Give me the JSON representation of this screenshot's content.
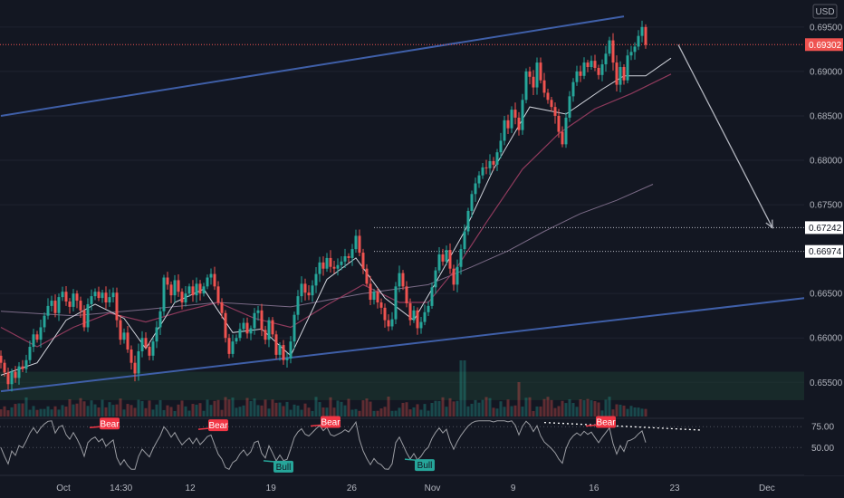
{
  "chart_data": {
    "type": "candlestick",
    "symbol_currency": "USD",
    "colors": {
      "background": "#131722",
      "up": "#26a69a",
      "down": "#ef5350",
      "channel": "#3f5fa8",
      "ma_fast": "#d1d4dc",
      "ma_mid": "#8e3a5c",
      "ma_slow": "#7a6a86",
      "zone": "#1e3b31",
      "rsi": "#9b9da3",
      "bull": "#26a69a",
      "bear": "#f23645"
    },
    "price_axis": {
      "min": 0.6535,
      "max": 0.6958,
      "ticks": [
        "0.69500",
        "0.69000",
        "0.68500",
        "0.68000",
        "0.67500",
        "0.66500",
        "0.66000",
        "0.65500"
      ]
    },
    "price_labels": [
      {
        "text": "0.69302",
        "value": 0.69302,
        "style": "current"
      },
      {
        "text": "0.67242",
        "value": 0.67242,
        "style": "level"
      },
      {
        "text": "0.66974",
        "value": 0.66974,
        "style": "level"
      }
    ],
    "time_axis": {
      "labels": [
        {
          "text": "Oct",
          "date": "2020-10-01"
        },
        {
          "text": "14:30",
          "date": "2020-10-06"
        },
        {
          "text": "12",
          "date": "2020-10-12"
        },
        {
          "text": "19",
          "date": "2020-10-19"
        },
        {
          "text": "26",
          "date": "2020-10-26"
        },
        {
          "text": "Nov",
          "date": "2020-11-02"
        },
        {
          "text": "9",
          "date": "2020-11-09"
        },
        {
          "text": "16",
          "date": "2020-11-16"
        },
        {
          "text": "23",
          "date": "2020-11-23"
        },
        {
          "text": "Dec",
          "date": "2020-12-01"
        }
      ]
    },
    "closes": [
      0.6572,
      0.6561,
      0.6548,
      0.6562,
      0.6555,
      0.6568,
      0.6565,
      0.6575,
      0.659,
      0.6604,
      0.6598,
      0.6612,
      0.6625,
      0.6636,
      0.6642,
      0.6628,
      0.6646,
      0.6652,
      0.6641,
      0.6635,
      0.665,
      0.6642,
      0.6631,
      0.6612,
      0.6638,
      0.6647,
      0.6652,
      0.6645,
      0.6651,
      0.664,
      0.6646,
      0.6651,
      0.662,
      0.6598,
      0.6606,
      0.6587,
      0.6572,
      0.656,
      0.6585,
      0.66,
      0.659,
      0.658,
      0.6596,
      0.6612,
      0.663,
      0.6668,
      0.666,
      0.6648,
      0.6665,
      0.6652,
      0.664,
      0.665,
      0.6658,
      0.6648,
      0.6661,
      0.665,
      0.6658,
      0.6668,
      0.6672,
      0.6658,
      0.664,
      0.6628,
      0.66,
      0.6582,
      0.6596,
      0.66,
      0.661,
      0.6617,
      0.6605,
      0.6611,
      0.6628,
      0.6631,
      0.6609,
      0.6598,
      0.662,
      0.6604,
      0.6581,
      0.6592,
      0.6575,
      0.6577,
      0.6596,
      0.6626,
      0.6647,
      0.6661,
      0.6651,
      0.6648,
      0.6659,
      0.6672,
      0.6685,
      0.6678,
      0.669,
      0.668,
      0.6678,
      0.6682,
      0.6686,
      0.6692,
      0.669,
      0.67,
      0.6715,
      0.6696,
      0.6678,
      0.6661,
      0.6643,
      0.6652,
      0.664,
      0.6634,
      0.662,
      0.6613,
      0.6621,
      0.6658,
      0.6673,
      0.6658,
      0.6639,
      0.662,
      0.6631,
      0.6611,
      0.6618,
      0.6629,
      0.6636,
      0.6657,
      0.6676,
      0.6694,
      0.6686,
      0.6699,
      0.6678,
      0.666,
      0.668,
      0.67,
      0.672,
      0.6743,
      0.6762,
      0.6774,
      0.6783,
      0.6792,
      0.6791,
      0.6799,
      0.6795,
      0.6809,
      0.6822,
      0.6845,
      0.6836,
      0.6857,
      0.6848,
      0.6834,
      0.6868,
      0.69,
      0.6894,
      0.6882,
      0.691,
      0.689,
      0.6876,
      0.6868,
      0.686,
      0.685,
      0.6832,
      0.6818,
      0.6848,
      0.6872,
      0.6888,
      0.69,
      0.6895,
      0.691,
      0.6905,
      0.6912,
      0.6904,
      0.6896,
      0.6908,
      0.692,
      0.6935,
      0.691,
      0.6885,
      0.6905,
      0.689,
      0.6918,
      0.6922,
      0.6928,
      0.694,
      0.695,
      0.693
    ],
    "moving_averages": {
      "fast": [
        [
          0,
          0.6558
        ],
        [
          10,
          0.6572
        ],
        [
          18,
          0.662
        ],
        [
          26,
          0.6638
        ],
        [
          34,
          0.6622
        ],
        [
          40,
          0.6588
        ],
        [
          48,
          0.664
        ],
        [
          56,
          0.6655
        ],
        [
          64,
          0.6606
        ],
        [
          72,
          0.661
        ],
        [
          80,
          0.658
        ],
        [
          90,
          0.6666
        ],
        [
          98,
          0.669
        ],
        [
          106,
          0.6645
        ],
        [
          114,
          0.662
        ],
        [
          120,
          0.6662
        ],
        [
          128,
          0.672
        ],
        [
          136,
          0.679
        ],
        [
          146,
          0.686
        ],
        [
          156,
          0.6852
        ],
        [
          166,
          0.688
        ],
        [
          172,
          0.6895
        ],
        [
          178,
          0.6895
        ],
        [
          185,
          0.6915
        ]
      ],
      "mid": [
        [
          0,
          0.6612
        ],
        [
          10,
          0.659
        ],
        [
          20,
          0.6612
        ],
        [
          30,
          0.6628
        ],
        [
          40,
          0.6618
        ],
        [
          50,
          0.663
        ],
        [
          60,
          0.664
        ],
        [
          70,
          0.6622
        ],
        [
          80,
          0.6612
        ],
        [
          90,
          0.6637
        ],
        [
          100,
          0.666
        ],
        [
          110,
          0.664
        ],
        [
          118,
          0.664
        ],
        [
          126,
          0.668
        ],
        [
          134,
          0.673
        ],
        [
          144,
          0.679
        ],
        [
          154,
          0.683
        ],
        [
          164,
          0.6858
        ],
        [
          174,
          0.6875
        ],
        [
          185,
          0.6897
        ]
      ],
      "slow": [
        [
          0,
          0.663
        ],
        [
          20,
          0.6625
        ],
        [
          40,
          0.6632
        ],
        [
          60,
          0.664
        ],
        [
          80,
          0.6635
        ],
        [
          100,
          0.665
        ],
        [
          118,
          0.666
        ],
        [
          130,
          0.668
        ],
        [
          140,
          0.6698
        ],
        [
          150,
          0.672
        ],
        [
          160,
          0.674
        ],
        [
          170,
          0.6755
        ],
        [
          180,
          0.6773
        ]
      ]
    },
    "channel": {
      "upper": [
        [
          0,
          0.685
        ],
        [
          172,
          0.6962
        ]
      ],
      "lower": [
        [
          0,
          0.654
        ],
        [
          222,
          0.6645
        ]
      ]
    },
    "forecast_arrow": [
      [
        186,
        0.693
      ],
      [
        213,
        0.6724
      ]
    ],
    "zone": {
      "from": 0.653,
      "to": 0.6562
    },
    "rsi_axis": {
      "ticks": [
        "75.00",
        "50.00"
      ],
      "min": 20,
      "max": 85
    },
    "rsi_annotations": [
      {
        "text": "Bear",
        "type": "bear",
        "index": 30,
        "rsi": 76
      },
      {
        "text": "Bear",
        "type": "bear",
        "index": 60,
        "rsi": 74
      },
      {
        "text": "Bull",
        "type": "bull",
        "index": 78,
        "rsi": 32
      },
      {
        "text": "Bear",
        "type": "bear",
        "index": 91,
        "rsi": 78
      },
      {
        "text": "Bull",
        "type": "bull",
        "index": 117,
        "rsi": 34
      },
      {
        "text": "Bear",
        "type": "bear",
        "index": 167,
        "rsi": 78
      }
    ]
  }
}
